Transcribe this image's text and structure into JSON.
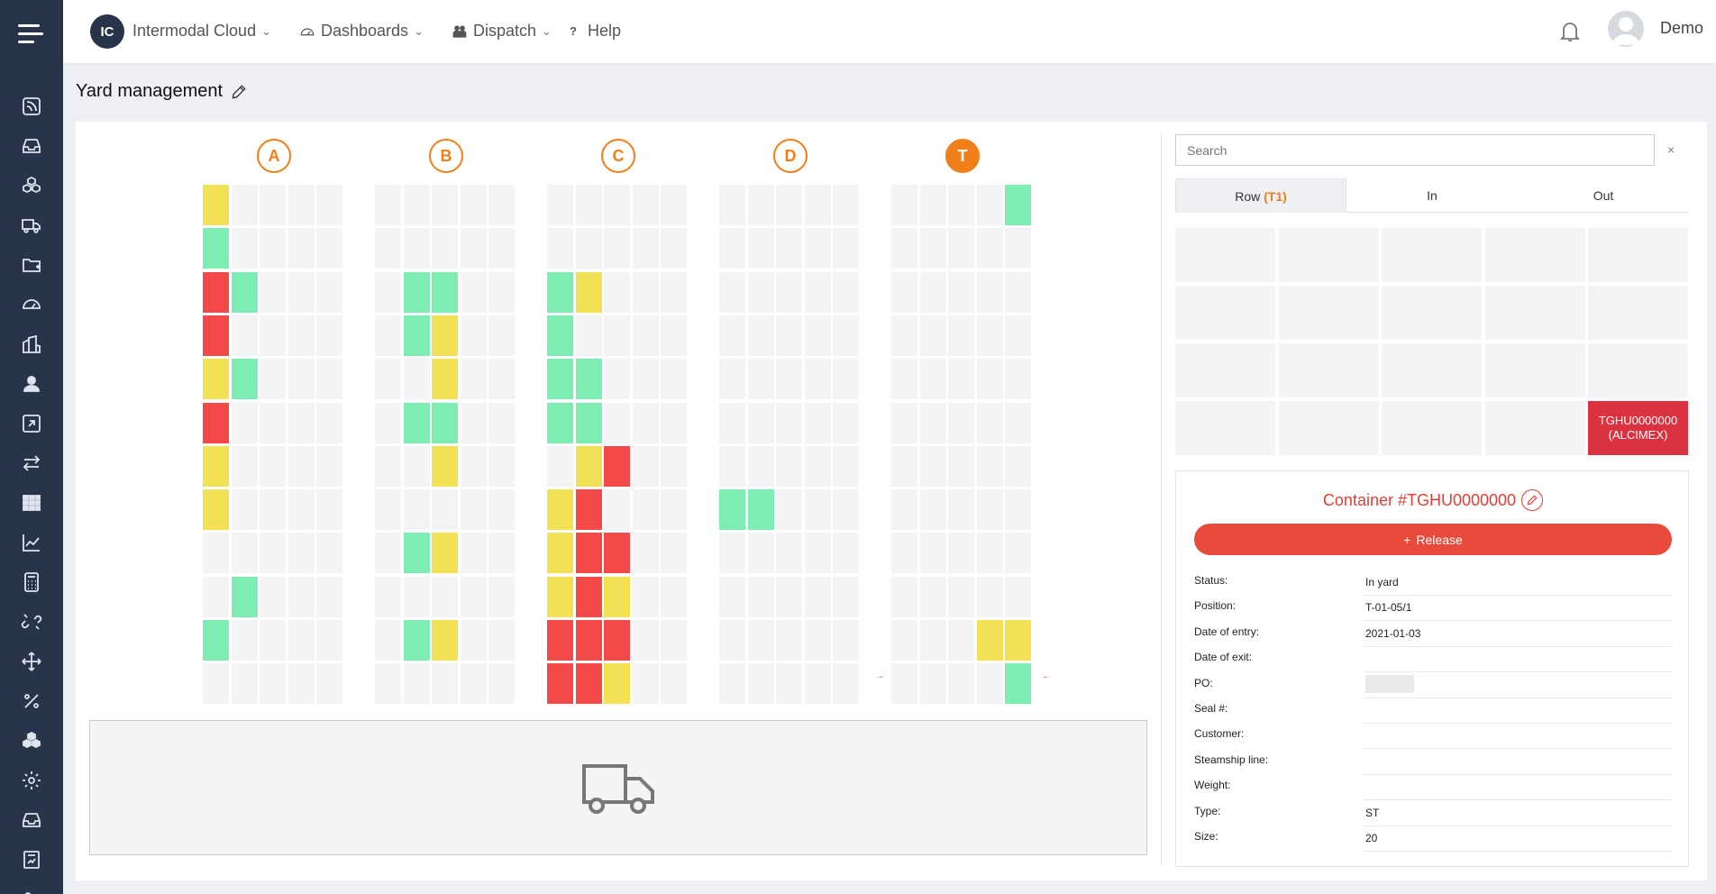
{
  "app": {
    "logo_text": "IC",
    "menus": [
      {
        "label": "Intermodal Cloud"
      },
      {
        "label": "Dashboards",
        "icon": "gauge-icon"
      },
      {
        "label": "Dispatch",
        "icon": "people-icon"
      },
      {
        "label": "Help",
        "icon": "question-icon"
      }
    ],
    "user": "Demo"
  },
  "page": {
    "title": "Yard management"
  },
  "yard": {
    "blocks": [
      {
        "label": "A",
        "active": false,
        "rows": [
          "y....",
          "g....",
          "rg...",
          "r....",
          "yg...",
          "r....",
          "y....",
          "y....",
          ".....",
          ".g...",
          "g....",
          "....."
        ]
      },
      {
        "label": "B",
        "active": false,
        "rows": [
          ".....",
          ".....",
          ".gg..",
          ".gy..",
          "..y..",
          ".gg..",
          "..y..",
          ".....",
          ".gy..",
          ".....",
          ".gy..",
          "....."
        ]
      },
      {
        "label": "C",
        "active": false,
        "rows": [
          ".....",
          ".....",
          "gy...",
          "g....",
          "gg...",
          "gg...",
          ".yr..",
          "yr...",
          "yrr..",
          "yry..",
          "rrr..",
          "rry.."
        ]
      },
      {
        "label": "D",
        "active": false,
        "rows": [
          ".....",
          ".....",
          ".....",
          ".....",
          ".....",
          ".....",
          ".....",
          "gg...",
          ".....",
          ".....",
          ".....",
          "....."
        ]
      },
      {
        "label": "T",
        "active": true,
        "rows": [
          "....g",
          ".....",
          ".....",
          ".....",
          ".....",
          ".....",
          ".....",
          ".....",
          ".....",
          ".....",
          "...yy",
          "....g"
        ]
      }
    ]
  },
  "panel": {
    "search_placeholder": "Search",
    "clear": "×",
    "tabs": {
      "row_prefix": "Row ",
      "row_highlight": "(T1)",
      "in": "In",
      "out": "Out"
    },
    "slot_container_line1": "TGHU0000000",
    "slot_container_line2": "(ALCIMEX)",
    "container_title": "Container #TGHU0000000",
    "release_label": "Release",
    "fields": [
      {
        "label": "Status:",
        "value": "In yard"
      },
      {
        "label": "Position:",
        "value": "T-01-05/1"
      },
      {
        "label": "Date of entry:",
        "value": "2021-01-03"
      },
      {
        "label": "Date of exit:",
        "value": ""
      },
      {
        "label": "PO:",
        "value": ""
      },
      {
        "label": "Seal #:",
        "value": ""
      },
      {
        "label": "Customer:",
        "value": ""
      },
      {
        "label": "Steamship line:",
        "value": ""
      },
      {
        "label": "Weight:",
        "value": ""
      },
      {
        "label": "Type:",
        "value": "ST"
      },
      {
        "label": "Size:",
        "value": "20"
      }
    ]
  },
  "colors": {
    "accent": "#f07f1a",
    "sidebar": "#28344a",
    "green": "#7deeb3",
    "yellow": "#f2e154",
    "red": "#f44949",
    "release": "#e84b3c"
  }
}
